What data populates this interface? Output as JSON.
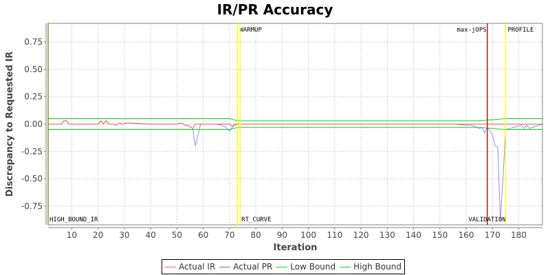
{
  "title": "IR/PR Accuracy",
  "chart_data": {
    "type": "line",
    "title": "IR/PR Accuracy",
    "xlabel": "Iteration",
    "ylabel": "Discrepancy to Requested IR",
    "xlim": [
      1,
      189
    ],
    "ylim": [
      -0.92,
      0.92
    ],
    "x_ticks": [
      10,
      20,
      30,
      40,
      50,
      60,
      70,
      80,
      90,
      100,
      110,
      120,
      130,
      140,
      150,
      160,
      170,
      180
    ],
    "y_ticks": [
      0.75,
      0.5,
      0.25,
      0.0,
      -0.25,
      -0.5,
      -0.75
    ],
    "y_tick_labels": [
      "0.75",
      "0.50",
      "0.25",
      "0.00",
      "-0.25",
      "-0.50",
      "-0.75"
    ],
    "grid": true,
    "legend_position": "bottom",
    "series": [
      {
        "name": "Actual IR",
        "color": "#ff5555",
        "points": [
          [
            1,
            0
          ],
          [
            6,
            0
          ],
          [
            7,
            0.03
          ],
          [
            8,
            0.03
          ],
          [
            9,
            0
          ],
          [
            20,
            0
          ],
          [
            21,
            0.03
          ],
          [
            22,
            0
          ],
          [
            23,
            0.03
          ],
          [
            24,
            0
          ],
          [
            26,
            0
          ],
          [
            27,
            -0.01
          ],
          [
            28,
            0.01
          ],
          [
            29,
            0
          ],
          [
            31,
            0.01
          ],
          [
            40,
            0
          ],
          [
            45,
            0
          ],
          [
            50,
            0
          ],
          [
            52,
            0.01
          ],
          [
            53,
            -0.01
          ],
          [
            54,
            -0.01
          ],
          [
            56,
            -0.04
          ],
          [
            57,
            0
          ],
          [
            70,
            0
          ],
          [
            71,
            -0.02
          ],
          [
            72,
            0
          ],
          [
            73,
            0
          ],
          [
            160,
            0
          ],
          [
            165,
            0
          ],
          [
            168,
            0
          ],
          [
            170,
            0
          ],
          [
            173,
            0
          ],
          [
            175,
            0
          ],
          [
            189,
            0
          ]
        ]
      },
      {
        "name": "Actual PR",
        "color": "#7777ff",
        "points": [
          [
            1,
            0
          ],
          [
            6,
            0
          ],
          [
            7,
            0.03
          ],
          [
            8,
            0.03
          ],
          [
            9,
            0
          ],
          [
            20,
            0
          ],
          [
            21,
            0.03
          ],
          [
            22,
            0
          ],
          [
            23,
            0.03
          ],
          [
            24,
            0
          ],
          [
            26,
            0
          ],
          [
            27,
            -0.01
          ],
          [
            28,
            0.01
          ],
          [
            29,
            0
          ],
          [
            31,
            0.01
          ],
          [
            40,
            0
          ],
          [
            45,
            0
          ],
          [
            50,
            0
          ],
          [
            52,
            0.01
          ],
          [
            53,
            -0.01
          ],
          [
            54,
            -0.01
          ],
          [
            56,
            -0.04
          ],
          [
            57,
            -0.2
          ],
          [
            58,
            -0.1
          ],
          [
            59,
            0
          ],
          [
            65,
            0
          ],
          [
            67,
            -0.01
          ],
          [
            68,
            -0.02
          ],
          [
            70,
            -0.06
          ],
          [
            71,
            -0.03
          ],
          [
            72,
            -0.01
          ],
          [
            73,
            0
          ],
          [
            155,
            0
          ],
          [
            160,
            -0.01
          ],
          [
            162,
            -0.01
          ],
          [
            165,
            -0.04
          ],
          [
            166,
            -0.03
          ],
          [
            167,
            -0.08
          ],
          [
            168,
            -0.03
          ],
          [
            169,
            -0.06
          ],
          [
            170,
            -0.1
          ],
          [
            171,
            -0.2
          ],
          [
            172,
            -0.21
          ],
          [
            173,
            -0.88
          ],
          [
            174,
            -0.5
          ],
          [
            175,
            -0.05
          ],
          [
            181,
            -0.01
          ],
          [
            182,
            -0.04
          ],
          [
            183,
            -0.01
          ],
          [
            184,
            -0.04
          ],
          [
            189,
            0
          ]
        ]
      },
      {
        "name": "Low Bound",
        "color": "#00dd00",
        "points": [
          [
            1,
            -0.05
          ],
          [
            70,
            -0.05
          ],
          [
            73,
            -0.03
          ],
          [
            165,
            -0.03
          ],
          [
            175,
            -0.05
          ],
          [
            189,
            -0.05
          ]
        ]
      },
      {
        "name": "High Bound",
        "color": "#00dd00",
        "points": [
          [
            1,
            0.05
          ],
          [
            70,
            0.05
          ],
          [
            73,
            0.03
          ],
          [
            165,
            0.03
          ],
          [
            175,
            0.05
          ],
          [
            189,
            0.05
          ]
        ]
      }
    ],
    "markers": [
      {
        "x": 1,
        "label": "HIGH_BOUND_IR",
        "color": "#808000",
        "label_pos": "bottom"
      },
      {
        "x": 73,
        "label": "WARMUP",
        "color": "#ffff00",
        "label_pos": "top"
      },
      {
        "x": 74,
        "label": "RT_CURVE",
        "color": "#ffff00",
        "label_pos": "bottom"
      },
      {
        "x": 168,
        "label": "max-jOPS",
        "color": "#dd0000",
        "label_pos": "top-left"
      },
      {
        "x": 168,
        "label": "VALIDATION",
        "color": "#dd0000",
        "label_pos": "bottom-left"
      },
      {
        "x": 175,
        "label": "PROFILE",
        "color": "#ffff00",
        "label_pos": "top"
      }
    ]
  },
  "legend": [
    {
      "label": "Actual IR",
      "color": "#ff5555"
    },
    {
      "label": "Actual PR",
      "color": "#6666ff"
    },
    {
      "label": "Low Bound",
      "color": "#00dd00"
    },
    {
      "label": "High Bound",
      "color": "#00dd00"
    }
  ]
}
